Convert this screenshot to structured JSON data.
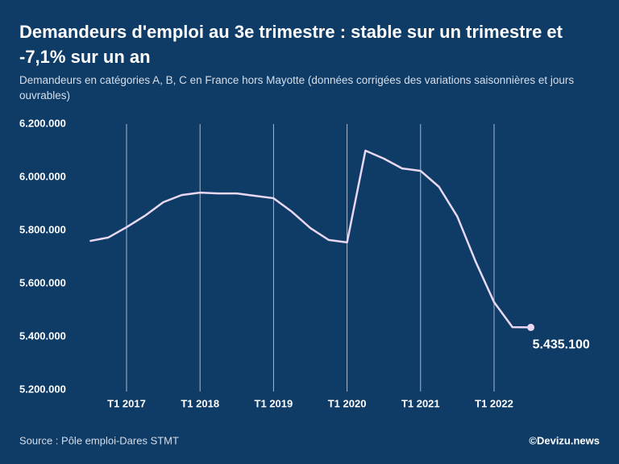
{
  "chart_data": {
    "type": "line",
    "title": "Demandeurs d'emploi au 3e trimestre : stable sur un trimestre et -7,1% sur un an",
    "subtitle": "Demandeurs en catégories A, B, C en France hors Mayotte (données corrigées des variations saisonnières et jours ouvrables)",
    "categories": [
      null,
      null,
      "T1 2017",
      null,
      null,
      null,
      "T1 2018",
      null,
      null,
      null,
      "T1 2019",
      null,
      null,
      null,
      "T1 2020",
      null,
      null,
      null,
      "T1 2021",
      null,
      null,
      null,
      "T1 2022",
      null,
      null
    ],
    "values": [
      5760000,
      5773000,
      5812000,
      5855000,
      5906000,
      5933000,
      5942000,
      5939000,
      5939000,
      5930000,
      5921000,
      5870000,
      5809000,
      5764000,
      5755000,
      6100000,
      6070000,
      6033000,
      6024000,
      5964000,
      5852000,
      5682000,
      5530000,
      5436000,
      5435100
    ],
    "value_labels": [
      null,
      null,
      null,
      null,
      null,
      null,
      null,
      null,
      null,
      null,
      null,
      null,
      null,
      null,
      null,
      null,
      null,
      null,
      null,
      null,
      null,
      null,
      null,
      null,
      "5.435.100"
    ],
    "color": "#e9d8f2",
    "ylim": [
      5200000,
      6200000
    ],
    "yticks": [
      {
        "value": 5200000,
        "label": "5.200.000"
      },
      {
        "value": 5400000,
        "label": "5.400.000"
      },
      {
        "value": 5600000,
        "label": "5.600.000"
      },
      {
        "value": 5800000,
        "label": "5.800.000"
      },
      {
        "value": 6000000,
        "label": "6.000.000"
      },
      {
        "value": 6200000,
        "label": "6.200.000"
      }
    ],
    "grid": "x",
    "source": "Source : Pôle emploi-Dares STMT",
    "credit": "©Devizu.news"
  }
}
